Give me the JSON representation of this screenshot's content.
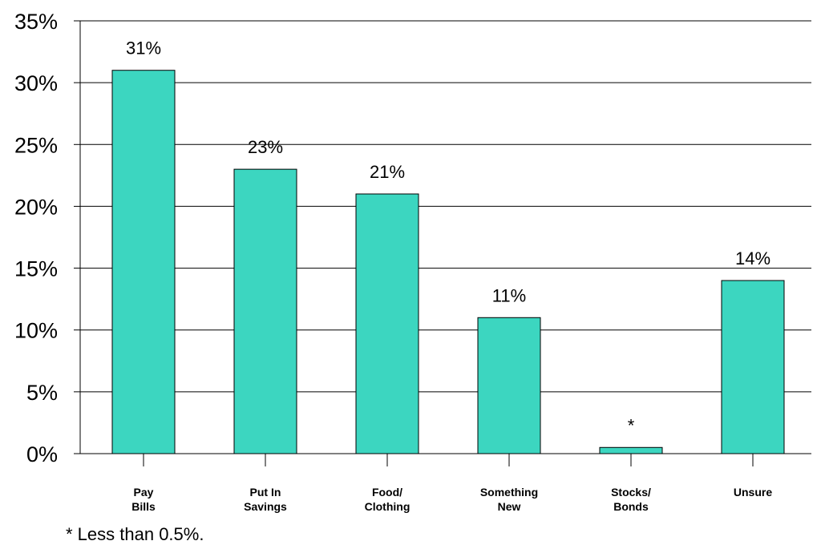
{
  "chart_data": {
    "type": "bar",
    "categories": [
      [
        "Pay",
        "Bills"
      ],
      [
        "Put In",
        "Savings"
      ],
      [
        "Food/",
        "Clothing"
      ],
      [
        "Something",
        "New"
      ],
      [
        "Stocks/",
        "Bonds"
      ],
      [
        "Unsure"
      ]
    ],
    "values": [
      31,
      23,
      21,
      11,
      0.5,
      14
    ],
    "data_labels": [
      "31%",
      "23%",
      "21%",
      "11%",
      "*",
      "14%"
    ],
    "y_ticks": [
      "0%",
      "5%",
      "10%",
      "15%",
      "20%",
      "25%",
      "30%",
      "35%"
    ],
    "y_tick_values": [
      0,
      5,
      10,
      15,
      20,
      25,
      30,
      35
    ],
    "ylim": [
      0,
      35
    ],
    "grid": true,
    "bar_color": "#3cd6c0",
    "footnote": "* Less than 0.5%."
  }
}
